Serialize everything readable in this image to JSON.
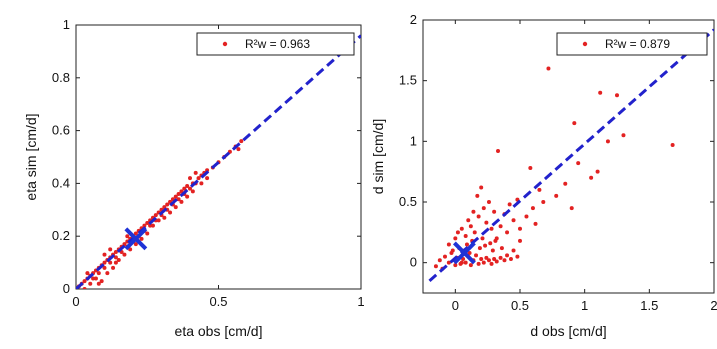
{
  "chart_data": [
    {
      "type": "scatter",
      "xlabel": "eta obs  [cm/d]",
      "ylabel": "eta sim  [cm/d]",
      "xlim": [
        0,
        1
      ],
      "ylim": [
        0,
        1
      ],
      "xticks": [
        "0",
        "0.5",
        "1"
      ],
      "yticks": [
        "0",
        "0.2",
        "0.4",
        "0.6",
        "0.8",
        "1"
      ],
      "legend": {
        "text": "R²w = 0.963",
        "position": "top-right"
      },
      "grid": false,
      "fit_line": {
        "x": [
          0,
          1
        ],
        "y": [
          0,
          0.96
        ],
        "color": "#2222cc",
        "style": "dashed"
      },
      "centroid": {
        "x": 0.21,
        "y": 0.19,
        "color": "#1f33d6"
      },
      "points_color": "#e32222",
      "points": [
        [
          0.01,
          0.01
        ],
        [
          0.02,
          0.02
        ],
        [
          0.03,
          0.03
        ],
        [
          0.04,
          0.04
        ],
        [
          0.05,
          0.05
        ],
        [
          0.06,
          0.04
        ],
        [
          0.06,
          0.06
        ],
        [
          0.07,
          0.07
        ],
        [
          0.08,
          0.06
        ],
        [
          0.08,
          0.08
        ],
        [
          0.09,
          0.09
        ],
        [
          0.1,
          0.08
        ],
        [
          0.1,
          0.1
        ],
        [
          0.11,
          0.11
        ],
        [
          0.12,
          0.1
        ],
        [
          0.12,
          0.12
        ],
        [
          0.13,
          0.13
        ],
        [
          0.14,
          0.12
        ],
        [
          0.14,
          0.14
        ],
        [
          0.15,
          0.15
        ],
        [
          0.16,
          0.14
        ],
        [
          0.16,
          0.16
        ],
        [
          0.17,
          0.17
        ],
        [
          0.18,
          0.16
        ],
        [
          0.18,
          0.18
        ],
        [
          0.19,
          0.19
        ],
        [
          0.2,
          0.18
        ],
        [
          0.2,
          0.2
        ],
        [
          0.21,
          0.21
        ],
        [
          0.22,
          0.2
        ],
        [
          0.22,
          0.22
        ],
        [
          0.23,
          0.23
        ],
        [
          0.24,
          0.22
        ],
        [
          0.24,
          0.24
        ],
        [
          0.25,
          0.25
        ],
        [
          0.26,
          0.24
        ],
        [
          0.26,
          0.26
        ],
        [
          0.27,
          0.27
        ],
        [
          0.28,
          0.26
        ],
        [
          0.28,
          0.28
        ],
        [
          0.29,
          0.29
        ],
        [
          0.3,
          0.28
        ],
        [
          0.3,
          0.3
        ],
        [
          0.31,
          0.31
        ],
        [
          0.32,
          0.3
        ],
        [
          0.32,
          0.32
        ],
        [
          0.33,
          0.33
        ],
        [
          0.34,
          0.32
        ],
        [
          0.34,
          0.34
        ],
        [
          0.35,
          0.35
        ],
        [
          0.36,
          0.34
        ],
        [
          0.36,
          0.36
        ],
        [
          0.37,
          0.37
        ],
        [
          0.38,
          0.36
        ],
        [
          0.38,
          0.38
        ],
        [
          0.39,
          0.39
        ],
        [
          0.4,
          0.38
        ],
        [
          0.41,
          0.4
        ],
        [
          0.42,
          0.4
        ],
        [
          0.43,
          0.42
        ],
        [
          0.44,
          0.43
        ],
        [
          0.45,
          0.44
        ],
        [
          0.46,
          0.45
        ],
        [
          0.48,
          0.46
        ],
        [
          0.5,
          0.48
        ],
        [
          0.52,
          0.5
        ],
        [
          0.54,
          0.52
        ],
        [
          0.56,
          0.54
        ],
        [
          0.58,
          0.56
        ],
        [
          0.57,
          0.53
        ],
        [
          0.04,
          0.06
        ],
        [
          0.07,
          0.04
        ],
        [
          0.09,
          0.03
        ],
        [
          0.11,
          0.06
        ],
        [
          0.13,
          0.08
        ],
        [
          0.15,
          0.11
        ],
        [
          0.1,
          0.13
        ],
        [
          0.12,
          0.15
        ],
        [
          0.17,
          0.13
        ],
        [
          0.19,
          0.15
        ],
        [
          0.23,
          0.19
        ],
        [
          0.25,
          0.21
        ],
        [
          0.27,
          0.24
        ],
        [
          0.29,
          0.26
        ],
        [
          0.31,
          0.27
        ],
        [
          0.33,
          0.29
        ],
        [
          0.35,
          0.31
        ],
        [
          0.37,
          0.33
        ],
        [
          0.39,
          0.35
        ],
        [
          0.41,
          0.37
        ],
        [
          0.42,
          0.44
        ],
        [
          0.4,
          0.42
        ],
        [
          0.44,
          0.4
        ],
        [
          0.46,
          0.42
        ],
        [
          0.03,
          0.0
        ],
        [
          0.05,
          0.02
        ],
        [
          0.08,
          0.02
        ],
        [
          0.14,
          0.1
        ],
        [
          0.18,
          0.2
        ],
        [
          0.21,
          0.17
        ]
      ]
    },
    {
      "type": "scatter",
      "xlabel": "d obs  [cm/d]",
      "ylabel": "d sim  [cm/d]",
      "xlim": [
        -0.25,
        2
      ],
      "ylim": [
        -0.25,
        2
      ],
      "xticks": [
        "0",
        "0.5",
        "1",
        "1.5",
        "2"
      ],
      "yticks": [
        "0",
        "0.5",
        "1",
        "1.5",
        "2"
      ],
      "legend": {
        "text": "R²w = 0.879",
        "position": "top-right"
      },
      "grid": false,
      "fit_line": {
        "x": [
          -0.2,
          2.0
        ],
        "y": [
          -0.15,
          1.92
        ],
        "color": "#2222cc",
        "style": "dashed"
      },
      "centroid": {
        "x": 0.07,
        "y": 0.08,
        "color": "#1f33d6"
      },
      "points_color": "#e32222",
      "points": [
        [
          -0.15,
          -0.03
        ],
        [
          -0.12,
          0.02
        ],
        [
          -0.1,
          -0.05
        ],
        [
          -0.08,
          0.05
        ],
        [
          -0.05,
          0.0
        ],
        [
          -0.03,
          0.08
        ],
        [
          0.0,
          -0.02
        ],
        [
          0.02,
          0.04
        ],
        [
          0.04,
          -0.01
        ],
        [
          0.06,
          0.03
        ],
        [
          0.08,
          0.0
        ],
        [
          0.1,
          0.05
        ],
        [
          0.12,
          -0.02
        ],
        [
          0.14,
          0.02
        ],
        [
          0.16,
          0.06
        ],
        [
          0.18,
          -0.01
        ],
        [
          0.2,
          0.03
        ],
        [
          0.22,
          0.0
        ],
        [
          0.24,
          0.04
        ],
        [
          0.26,
          0.02
        ],
        [
          0.28,
          -0.01
        ],
        [
          0.3,
          0.03
        ],
        [
          0.32,
          0.01
        ],
        [
          0.35,
          0.04
        ],
        [
          0.38,
          0.02
        ],
        [
          0.4,
          0.06
        ],
        [
          0.43,
          0.03
        ],
        [
          0.45,
          0.1
        ],
        [
          0.48,
          0.05
        ],
        [
          0.5,
          0.18
        ],
        [
          -0.05,
          0.15
        ],
        [
          0.0,
          0.2
        ],
        [
          0.03,
          0.12
        ],
        [
          0.05,
          0.28
        ],
        [
          0.08,
          0.22
        ],
        [
          0.1,
          0.35
        ],
        [
          0.12,
          0.3
        ],
        [
          0.14,
          0.42
        ],
        [
          0.15,
          0.25
        ],
        [
          0.17,
          0.55
        ],
        [
          0.18,
          0.38
        ],
        [
          0.2,
          0.62
        ],
        [
          0.22,
          0.45
        ],
        [
          0.24,
          0.33
        ],
        [
          0.26,
          0.5
        ],
        [
          0.28,
          0.28
        ],
        [
          0.3,
          0.42
        ],
        [
          0.32,
          0.2
        ],
        [
          0.33,
          0.92
        ],
        [
          0.35,
          0.3
        ],
        [
          0.38,
          0.4
        ],
        [
          0.4,
          0.25
        ],
        [
          0.42,
          0.48
        ],
        [
          0.45,
          0.35
        ],
        [
          0.48,
          0.52
        ],
        [
          0.5,
          0.28
        ],
        [
          0.55,
          0.38
        ],
        [
          0.58,
          0.78
        ],
        [
          0.6,
          0.45
        ],
        [
          0.62,
          0.32
        ],
        [
          0.65,
          0.6
        ],
        [
          0.68,
          0.5
        ],
        [
          0.72,
          1.6
        ],
        [
          0.78,
          0.55
        ],
        [
          0.85,
          0.65
        ],
        [
          0.9,
          0.45
        ],
        [
          0.92,
          1.15
        ],
        [
          0.95,
          0.82
        ],
        [
          1.05,
          0.7
        ],
        [
          1.1,
          0.75
        ],
        [
          1.12,
          1.4
        ],
        [
          1.18,
          1.0
        ],
        [
          1.25,
          1.38
        ],
        [
          1.3,
          1.05
        ],
        [
          1.68,
          0.97
        ],
        [
          1.72,
          1.85
        ],
        [
          0.05,
          0.0
        ],
        [
          0.07,
          0.1
        ],
        [
          0.09,
          0.15
        ],
        [
          0.11,
          0.08
        ],
        [
          0.13,
          0.18
        ],
        [
          0.02,
          0.25
        ],
        [
          -0.02,
          0.1
        ],
        [
          0.19,
          0.12
        ],
        [
          0.21,
          0.2
        ],
        [
          0.23,
          0.14
        ],
        [
          0.27,
          0.16
        ],
        [
          0.29,
          0.1
        ],
        [
          0.31,
          0.18
        ],
        [
          0.36,
          0.12
        ]
      ]
    }
  ]
}
